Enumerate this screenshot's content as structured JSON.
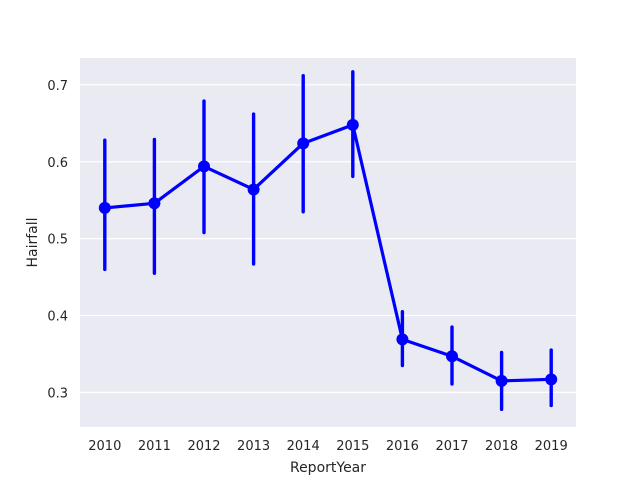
{
  "chart_data": {
    "type": "line",
    "style": "point plot with error bars",
    "title": "",
    "xlabel": "ReportYear",
    "ylabel": "Hairfall",
    "categories": [
      "2010",
      "2011",
      "2012",
      "2013",
      "2014",
      "2015",
      "2016",
      "2017",
      "2018",
      "2019"
    ],
    "series": [
      {
        "values": [
          0.54,
          0.546,
          0.594,
          0.564,
          0.624,
          0.648,
          0.369,
          0.347,
          0.315,
          0.317
        ],
        "ci_low": [
          0.46,
          0.455,
          0.508,
          0.467,
          0.535,
          0.581,
          0.335,
          0.311,
          0.278,
          0.283
        ],
        "ci_high": [
          0.628,
          0.629,
          0.679,
          0.662,
          0.712,
          0.717,
          0.405,
          0.385,
          0.352,
          0.355
        ],
        "color": "#0000ff"
      }
    ],
    "ylim": [
      0.255,
      0.735
    ],
    "yticks": [
      "0.3",
      "0.4",
      "0.5",
      "0.6",
      "0.7"
    ],
    "grid": true,
    "background_color": "#eaeaf2",
    "grid_color": "#ffffff"
  }
}
